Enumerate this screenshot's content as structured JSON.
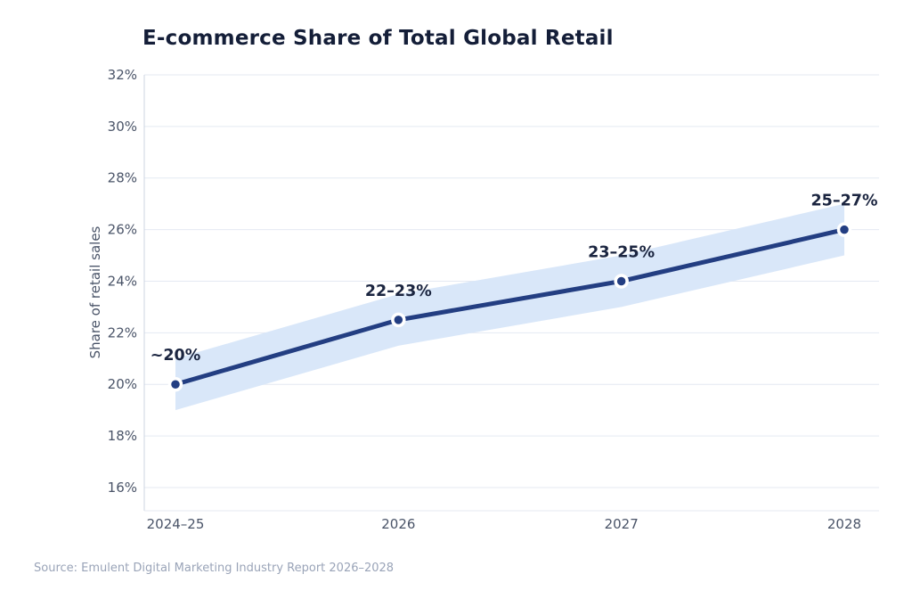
{
  "chart_data": {
    "type": "line",
    "title": "E-commerce Share of Total Global Retail",
    "ylabel": "Share of retail sales",
    "source": "Source: Emulent Digital Marketing Industry Report 2026–2028",
    "categories": [
      "2024–25",
      "2026",
      "2027",
      "2028"
    ],
    "values": [
      20,
      22.5,
      24,
      26
    ],
    "band": {
      "lower": [
        19,
        21.5,
        23,
        25
      ],
      "upper": [
        21,
        23.5,
        25,
        27
      ]
    },
    "point_labels": [
      "~20%",
      "22–23%",
      "23–25%",
      "25–27%"
    ],
    "yticks": [
      "32%",
      "30%",
      "28%",
      "26%",
      "24%",
      "22%",
      "20%",
      "18%",
      "16%"
    ],
    "ytick_values": [
      32,
      30,
      28,
      26,
      24,
      22,
      20,
      18,
      16
    ],
    "ylim": [
      15.1,
      32
    ],
    "grid": true,
    "legend": "none",
    "colors": {
      "line": "#233e82",
      "point": "#233e82",
      "point_ring": "#ffffff",
      "band": "#d9e7f9",
      "grid": "#e4e9f2",
      "axis": "#ccd4e2",
      "title": "#141e38",
      "tick": "#4a5468",
      "point_label": "#1b2540",
      "source": "#9aa4b8",
      "background": "#ffffff"
    }
  }
}
